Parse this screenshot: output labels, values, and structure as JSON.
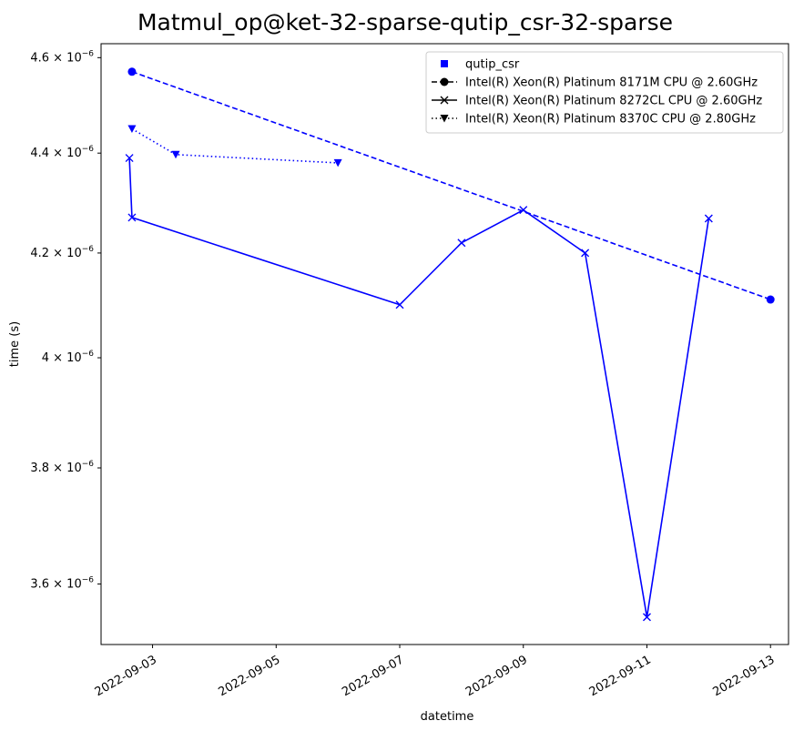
{
  "chart_data": {
    "type": "line",
    "title": "Matmul_op@ket-32-sparse-qutip_csr-32-sparse",
    "xlabel": "datetime",
    "ylabel": "time (s)",
    "x_axis": "date",
    "xlim": [
      "2022-09-02T04:00",
      "2022-09-13T07:00"
    ],
    "ylim": [
      3.5e-06,
      4.63e-06
    ],
    "y_scale": "log",
    "x_ticks": [
      "2022-09-03",
      "2022-09-05",
      "2022-09-07",
      "2022-09-09",
      "2022-09-11",
      "2022-09-13"
    ],
    "y_ticks": [
      {
        "value": 3.6e-06,
        "label": "3.6 × 10",
        "exp": "−6"
      },
      {
        "value": 3.8e-06,
        "label": "3.8 × 10",
        "exp": "−6"
      },
      {
        "value": 4e-06,
        "label": "4 × 10",
        "exp": "−6"
      },
      {
        "value": 4.2e-06,
        "label": "4.2 × 10",
        "exp": "−6"
      },
      {
        "value": 4.4e-06,
        "label": "4.4 × 10",
        "exp": "−6"
      },
      {
        "value": 4.6e-06,
        "label": "4.6 × 10",
        "exp": "−6"
      }
    ],
    "grid": false,
    "legend_position": "top-right",
    "color": "#0000ff",
    "legend": [
      {
        "label": "qutip_csr",
        "marker": "square",
        "linestyle": "none",
        "color": "#0000ff"
      },
      {
        "label": "Intel(R) Xeon(R) Platinum 8171M CPU @ 2.60GHz",
        "marker": "circle",
        "linestyle": "dashed",
        "color": "#000000"
      },
      {
        "label": "Intel(R) Xeon(R) Platinum 8272CL CPU @ 2.60GHz",
        "marker": "x",
        "linestyle": "solid",
        "color": "#000000"
      },
      {
        "label": "Intel(R) Xeon(R) Platinum 8370C CPU @ 2.80GHz",
        "marker": "triangle-down",
        "linestyle": "dotted",
        "color": "#000000"
      }
    ],
    "series": [
      {
        "name": "Intel(R) Xeon(R) Platinum 8171M CPU @ 2.60GHz",
        "marker": "circle",
        "linestyle": "dashed",
        "points": [
          {
            "x": "2022-09-02T16:00",
            "y": 4.57e-06
          },
          {
            "x": "2022-09-13T00:00",
            "y": 4.11e-06
          }
        ]
      },
      {
        "name": "Intel(R) Xeon(R) Platinum 8272CL CPU @ 2.60GHz",
        "marker": "x",
        "linestyle": "solid",
        "points": [
          {
            "x": "2022-09-02T15:00",
            "y": 4.39e-06
          },
          {
            "x": "2022-09-02T16:00",
            "y": 4.27e-06
          },
          {
            "x": "2022-09-07T00:00",
            "y": 4.1e-06
          },
          {
            "x": "2022-09-08T00:00",
            "y": 4.22e-06
          },
          {
            "x": "2022-09-09T00:00",
            "y": 4.285e-06
          },
          {
            "x": "2022-09-10T00:00",
            "y": 4.2e-06
          },
          {
            "x": "2022-09-11T00:00",
            "y": 3.545e-06
          },
          {
            "x": "2022-09-12T00:00",
            "y": 4.268e-06
          }
        ]
      },
      {
        "name": "Intel(R) Xeon(R) Platinum 8370C CPU @ 2.80GHz",
        "marker": "triangle-down",
        "linestyle": "dotted",
        "points": [
          {
            "x": "2022-09-02T16:00",
            "y": 4.45e-06
          },
          {
            "x": "2022-09-03T09:00",
            "y": 4.397e-06
          },
          {
            "x": "2022-09-06T00:00",
            "y": 4.38e-06
          }
        ]
      }
    ]
  }
}
